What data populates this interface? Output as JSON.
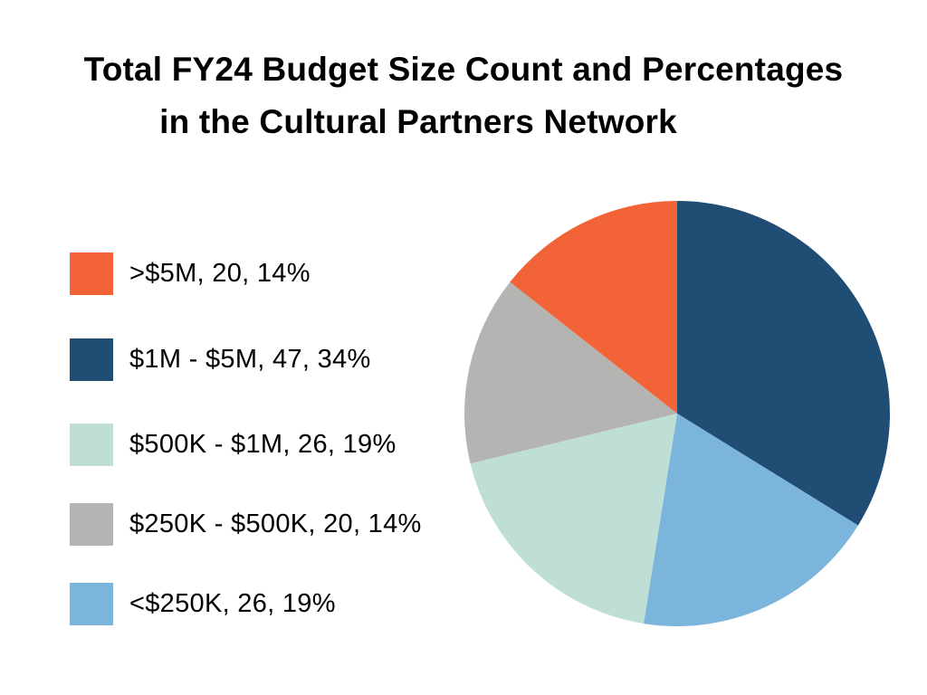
{
  "title": {
    "line1": "Total FY24 Budget Size Count and Percentages",
    "line2": "in the Cultural Partners Network"
  },
  "legend": {
    "items": [
      {
        "label": ">$5M, 20, 14%",
        "color": "#F26338"
      },
      {
        "label": "$1M - $5M, 47, 34%",
        "color": "#204D73"
      },
      {
        "label": "$500K - $1M, 26, 19%",
        "color": "#BFDFD6"
      },
      {
        "label": "$250K - $500K, 20, 14%",
        "color": "#B4B4B3"
      },
      {
        "label": "<$250K, 26, 19%",
        "color": "#7BB5DB"
      }
    ]
  },
  "chart_data": {
    "type": "pie",
    "title": "Total FY24 Budget Size Count and Percentages in the Cultural Partners Network",
    "categories": [
      ">$5M",
      "$1M - $5M",
      "$500K - $1M",
      "$250K - $500K",
      "<$250K"
    ],
    "values": [
      20,
      47,
      26,
      20,
      26
    ],
    "percentages": [
      14,
      34,
      19,
      14,
      19
    ],
    "colors": [
      "#F26338",
      "#204D73",
      "#BFDFD6",
      "#B4B4B3",
      "#7BB5DB"
    ],
    "slice_order_clockwise_from_top": [
      "$1M - $5M",
      "<$250K",
      "$500K - $1M",
      "$250K - $500K",
      ">$5M"
    ],
    "legend_position": "left"
  }
}
